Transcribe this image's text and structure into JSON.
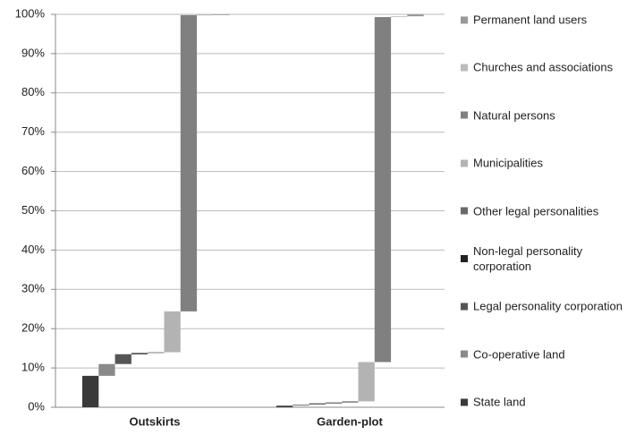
{
  "chart_data": {
    "type": "waterfall-stack",
    "categories": [
      "Outskirts",
      "Garden-plot"
    ],
    "series": [
      {
        "name": "State land",
        "color": "#3a3a3a",
        "values": [
          8,
          0.4
        ]
      },
      {
        "name": "Co-operative land",
        "color": "#8a8a8a",
        "values": [
          3,
          0.3
        ]
      },
      {
        "name": "Legal personality corporation",
        "color": "#555555",
        "values": [
          2.5,
          0.3
        ]
      },
      {
        "name": "Non-legal personality corporation",
        "color": "#222222",
        "values": [
          0.3,
          0.2
        ]
      },
      {
        "name": "Other legal personalities",
        "color": "#6a6a6a",
        "values": [
          0.2,
          0.3
        ]
      },
      {
        "name": "Municipalities",
        "color": "#b3b3b3",
        "values": [
          10.4,
          10
        ]
      },
      {
        "name": "Natural persons",
        "color": "#808080",
        "values": [
          75.4,
          87.8
        ]
      },
      {
        "name": "Churches and associations",
        "color": "#bdbdbd",
        "values": [
          0.1,
          0.2
        ]
      },
      {
        "name": "Permanent land users",
        "color": "#999999",
        "values": [
          0.1,
          0.5
        ]
      }
    ],
    "ylim": [
      0,
      100
    ],
    "yticks": [
      {
        "value": 0,
        "label": "0%"
      },
      {
        "value": 10,
        "label": "10%"
      },
      {
        "value": 20,
        "label": "20%"
      },
      {
        "value": 30,
        "label": "30%"
      },
      {
        "value": 40,
        "label": "40%"
      },
      {
        "value": 50,
        "label": "50%"
      },
      {
        "value": 60,
        "label": "60%"
      },
      {
        "value": 70,
        "label": "70%"
      },
      {
        "value": 80,
        "label": "80%"
      },
      {
        "value": 90,
        "label": "90%"
      },
      {
        "value": 100,
        "label": "100%"
      }
    ],
    "grid": true
  }
}
